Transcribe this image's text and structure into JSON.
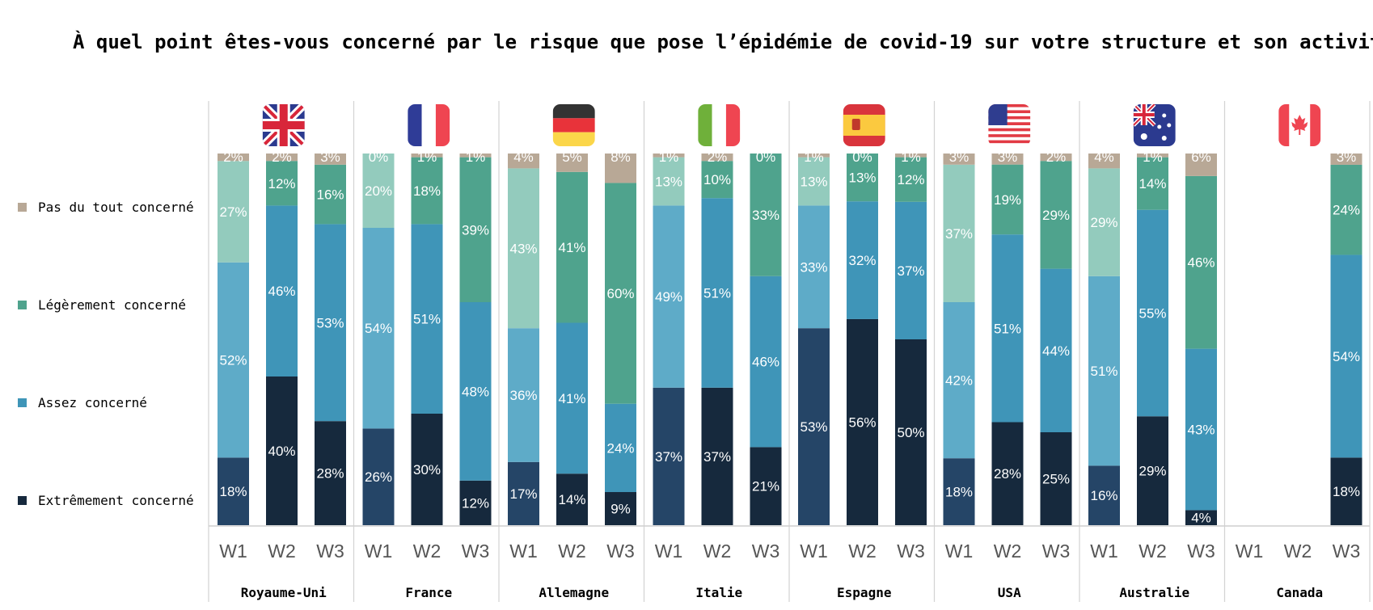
{
  "title": "À quel point êtes-vous concerné par le risque que pose l’épidémie de covid-19 sur votre structure et son activité ?",
  "colors": {
    "pas_du_tout": "#b8a896",
    "legerement_w1": "#93cbbd",
    "legerement": "#4fa38d",
    "assez_w1": "#5eabc8",
    "assez": "#3f95b8",
    "extremement_w1": "#254567",
    "extremement": "#16293d"
  },
  "chart_data": {
    "type": "bar",
    "stacked": true,
    "normalized_percent": true,
    "ylim": [
      0,
      100
    ],
    "legend": [
      {
        "key": "pas",
        "label": "Pas du tout concerné",
        "color": "#b8a896"
      },
      {
        "key": "leg",
        "label": "Légèrement concerné",
        "color": "#4fa38d"
      },
      {
        "key": "assez",
        "label": "Assez concerné",
        "color": "#3f95b8"
      },
      {
        "key": "ext",
        "label": "Extrêmement concerné",
        "color": "#16293d"
      }
    ],
    "groups": [
      {
        "country": "Royaume-Uni",
        "flag": "uk-flag-icon",
        "waves": [
          {
            "wave": "W1",
            "ext": 18,
            "assez": 52,
            "leg": 27,
            "pas": 2
          },
          {
            "wave": "W2",
            "ext": 40,
            "assez": 46,
            "leg": 12,
            "pas": 2
          },
          {
            "wave": "W3",
            "ext": 28,
            "assez": 53,
            "leg": 16,
            "pas": 3
          }
        ]
      },
      {
        "country": "France",
        "flag": "france-flag-icon",
        "waves": [
          {
            "wave": "W1",
            "ext": 26,
            "assez": 54,
            "leg": 20,
            "pas": 0
          },
          {
            "wave": "W2",
            "ext": 30,
            "assez": 51,
            "leg": 18,
            "pas": 1
          },
          {
            "wave": "W3",
            "ext": 12,
            "assez": 48,
            "leg": 39,
            "pas": 1
          }
        ]
      },
      {
        "country": "Allemagne",
        "flag": "germany-flag-icon",
        "waves": [
          {
            "wave": "W1",
            "ext": 17,
            "assez": 36,
            "leg": 43,
            "pas": 4
          },
          {
            "wave": "W2",
            "ext": 14,
            "assez": 41,
            "leg": 41,
            "pas": 5
          },
          {
            "wave": "W3",
            "ext": 9,
            "assez": 24,
            "leg": 60,
            "pas": 8
          }
        ]
      },
      {
        "country": "Italie",
        "flag": "italy-flag-icon",
        "waves": [
          {
            "wave": "W1",
            "ext": 37,
            "assez": 49,
            "leg": 13,
            "pas": 1
          },
          {
            "wave": "W2",
            "ext": 37,
            "assez": 51,
            "leg": 10,
            "pas": 2
          },
          {
            "wave": "W3",
            "ext": 21,
            "assez": 46,
            "leg": 33,
            "pas": 0
          }
        ]
      },
      {
        "country": "Espagne",
        "flag": "spain-flag-icon",
        "waves": [
          {
            "wave": "W1",
            "ext": 53,
            "assez": 33,
            "leg": 13,
            "pas": 1
          },
          {
            "wave": "W2",
            "ext": 56,
            "assez": 32,
            "leg": 13,
            "pas": 0
          },
          {
            "wave": "W3",
            "ext": 50,
            "assez": 37,
            "leg": 12,
            "pas": 1
          }
        ]
      },
      {
        "country": "USA",
        "flag": "usa-flag-icon",
        "waves": [
          {
            "wave": "W1",
            "ext": 18,
            "assez": 42,
            "leg": 37,
            "pas": 3
          },
          {
            "wave": "W2",
            "ext": 28,
            "assez": 51,
            "leg": 19,
            "pas": 3
          },
          {
            "wave": "W3",
            "ext": 25,
            "assez": 44,
            "leg": 29,
            "pas": 2
          }
        ]
      },
      {
        "country": "Australie",
        "flag": "australia-flag-icon",
        "waves": [
          {
            "wave": "W1",
            "ext": 16,
            "assez": 51,
            "leg": 29,
            "pas": 4
          },
          {
            "wave": "W2",
            "ext": 29,
            "assez": 55,
            "leg": 14,
            "pas": 1
          },
          {
            "wave": "W3",
            "ext": 4,
            "assez": 43,
            "leg": 46,
            "pas": 6
          }
        ]
      },
      {
        "country": "Canada",
        "flag": "canada-flag-icon",
        "waves": [
          {
            "wave": "W1"
          },
          {
            "wave": "W2"
          },
          {
            "wave": "W3",
            "ext": 18,
            "assez": 54,
            "leg": 24,
            "pas": 3
          }
        ]
      }
    ]
  }
}
